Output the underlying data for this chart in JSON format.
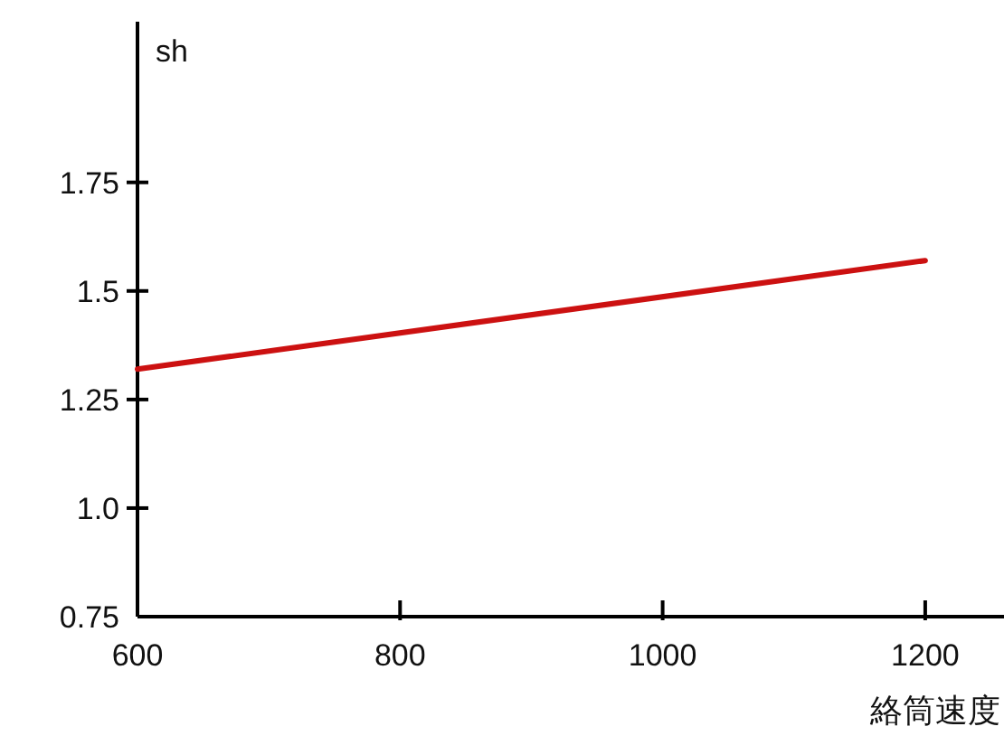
{
  "chart_data": {
    "type": "line",
    "xlabel": "絡筒速度",
    "ylabel": "sh",
    "x": [
      600,
      1200
    ],
    "series": [
      {
        "color": "#cc1111",
        "values": [
          1.32,
          1.57
        ]
      }
    ],
    "xlim": [
      600,
      1260
    ],
    "ylim": [
      0.75,
      2.12
    ],
    "xticks": [
      600,
      800,
      1000,
      1200
    ],
    "yticks": [
      {
        "value": 0.75,
        "label": "0.75"
      },
      {
        "value": 1,
        "label": "1.0"
      },
      1.25,
      1.5,
      1.75
    ],
    "marker": "none",
    "line_style": "solid"
  }
}
